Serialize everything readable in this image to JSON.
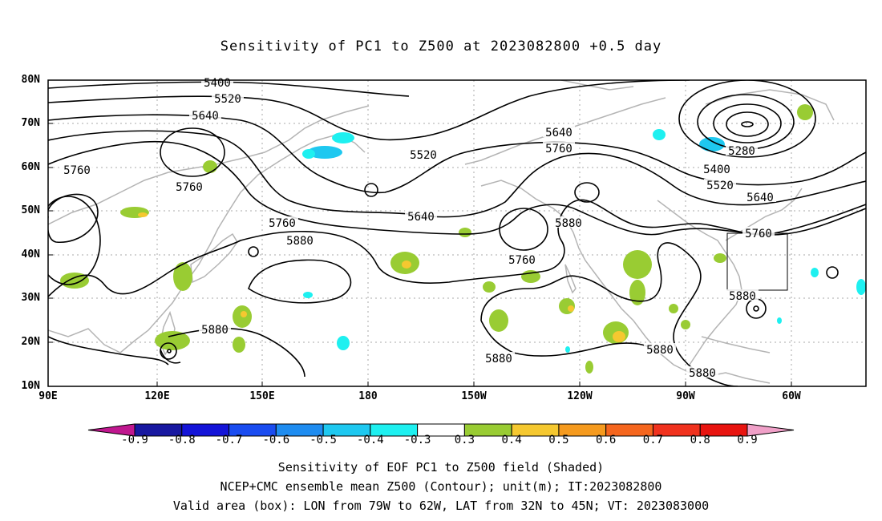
{
  "title": "Sensitivity of PC1 to Z500 at 2023082800 +0.5 day",
  "lat_labels": [
    "80N",
    "70N",
    "60N",
    "50N",
    "40N",
    "30N",
    "20N",
    "10N"
  ],
  "lon_labels": [
    "90E",
    "120E",
    "150E",
    "180",
    "150W",
    "120W",
    "90W",
    "60W"
  ],
  "contour_labels": [
    "5400",
    "5520",
    "5640",
    "5760",
    "5520",
    "5640",
    "5760",
    "5280",
    "5400",
    "5520",
    "5640",
    "5760",
    "5760",
    "5760",
    "5880",
    "5880",
    "5640",
    "5760",
    "5880",
    "5880",
    "5880",
    "5880",
    "5880"
  ],
  "colorbar": {
    "labels": [
      "-0.9",
      "-0.8",
      "-0.7",
      "-0.6",
      "-0.5",
      "-0.4",
      "-0.3",
      "0.3",
      "0.4",
      "0.5",
      "0.6",
      "0.7",
      "0.8",
      "0.9"
    ],
    "colors": [
      "#c0178f",
      "#1818a0",
      "#1414d8",
      "#1a4cf0",
      "#1e8cf0",
      "#1ec8f0",
      "#1ef0f0",
      "#ffffff",
      "#99cc33",
      "#f5c830",
      "#f59a1e",
      "#f5661e",
      "#f0321e",
      "#e81410",
      "#f0a0c8"
    ]
  },
  "captions": [
    "Sensitivity of EOF PC1 to Z500 field (Shaded)",
    "NCEP+CMC ensemble mean Z500 (Contour); unit(m); IT:2023082800",
    "Valid area (box): LON from 79W to 62W, LAT from 32N to 45N; VT: 2023083000"
  ]
}
